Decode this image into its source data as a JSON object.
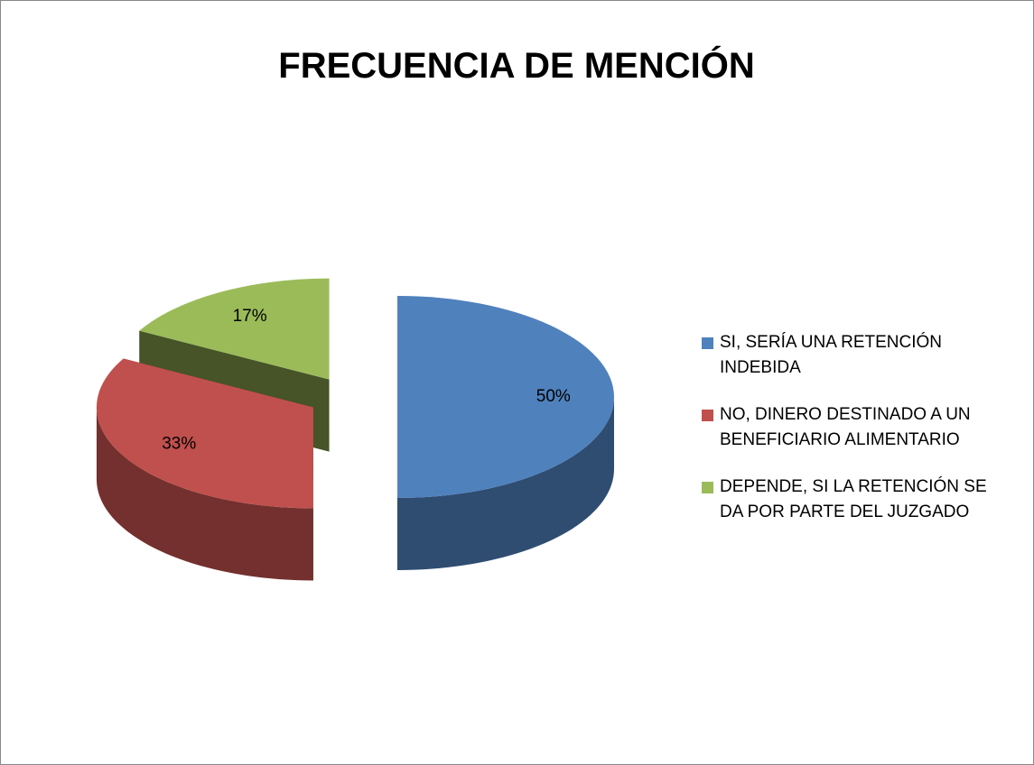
{
  "chart_data": {
    "type": "pie",
    "title": "FRECUENCIA DE MENCIÓN",
    "categories": [
      "SI, SERÍA UNA RETENCIÓN INDEBIDA",
      "NO, DINERO DESTINADO A UN BENEFICIARIO ALIMENTARIO",
      "DEPENDE, SI LA RETENCIÓN SE DA POR PARTE DEL JUZGADO"
    ],
    "values": [
      50,
      33,
      17
    ],
    "value_labels": [
      "50%",
      "33%",
      "17%"
    ],
    "colors": [
      "#4f81bd",
      "#c0504d",
      "#9bbb59"
    ],
    "legend": "right"
  }
}
